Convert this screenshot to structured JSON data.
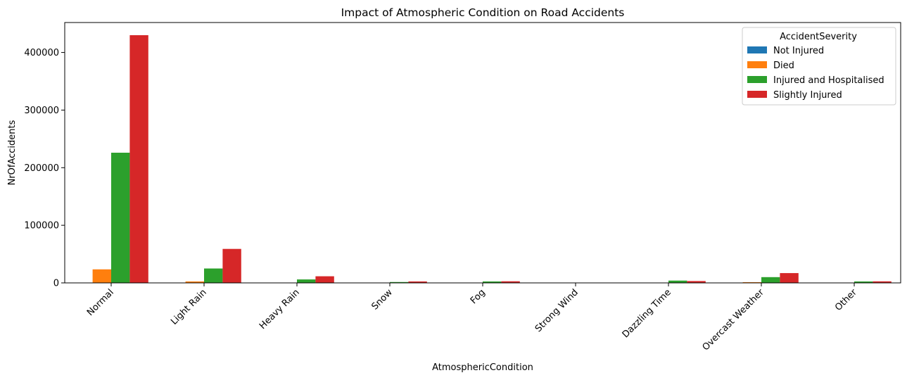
{
  "chart_data": {
    "type": "bar",
    "title": "Impact of Atmospheric Condition on Road Accidents",
    "xlabel": "AtmosphericCondition",
    "ylabel": "NrOfAccidents",
    "ylim": [
      0,
      452000
    ],
    "yticks": [
      0,
      100000,
      200000,
      300000,
      400000
    ],
    "grid": false,
    "legend": {
      "title": "AccidentSeverity",
      "placement": "top-right"
    },
    "categories": [
      "Normal",
      "Light Rain",
      "Heavy Rain",
      "Snow",
      "Fog",
      "Strong Wind",
      "Dazzling Time",
      "Overcast Weather",
      "Other"
    ],
    "series": [
      {
        "name": "Not Injured",
        "color": "#1f77b4",
        "values": [
          0,
          0,
          0,
          0,
          0,
          0,
          0,
          0,
          0
        ]
      },
      {
        "name": "Died",
        "color": "#ff7f0e",
        "values": [
          23500,
          2500,
          300,
          100,
          200,
          50,
          200,
          1200,
          200
        ]
      },
      {
        "name": "Injured and Hospitalised",
        "color": "#2ca02c",
        "values": [
          226000,
          25000,
          6000,
          1500,
          2500,
          300,
          4000,
          10000,
          2500
        ]
      },
      {
        "name": "Slightly Injured",
        "color": "#d62728",
        "values": [
          430000,
          59000,
          11500,
          2500,
          2800,
          500,
          3200,
          17000,
          2700
        ]
      }
    ]
  }
}
